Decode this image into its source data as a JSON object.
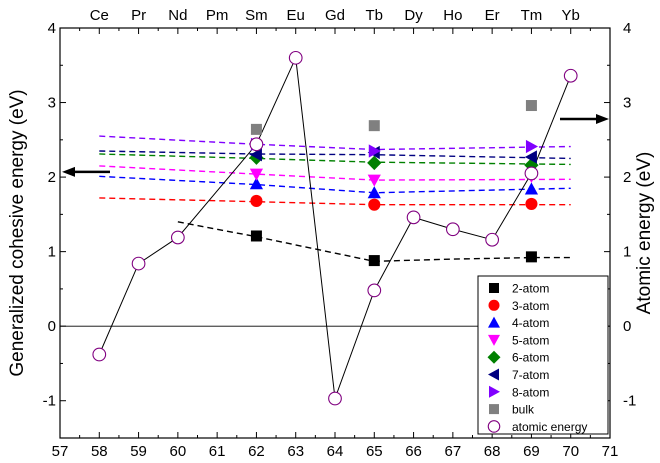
{
  "chart_data": {
    "type": "scatter",
    "xlabel": "",
    "ylabel_left": "Generalized cohesive energy (eV)",
    "ylabel_right": "Atomic energy (eV)",
    "xlim": [
      57,
      71
    ],
    "ylim": [
      -1.5,
      4
    ],
    "x_ticks": [
      57,
      58,
      59,
      60,
      61,
      62,
      63,
      64,
      65,
      66,
      67,
      68,
      69,
      70,
      71
    ],
    "y_ticks": [
      -1,
      0,
      1,
      2,
      3,
      4
    ],
    "top_labels": [
      {
        "x": 58,
        "label": "Ce"
      },
      {
        "x": 59,
        "label": "Pr"
      },
      {
        "x": 60,
        "label": "Nd"
      },
      {
        "x": 61,
        "label": "Pm"
      },
      {
        "x": 62,
        "label": "Sm"
      },
      {
        "x": 63,
        "label": "Eu"
      },
      {
        "x": 64,
        "label": "Gd"
      },
      {
        "x": 65,
        "label": "Tb"
      },
      {
        "x": 66,
        "label": "Dy"
      },
      {
        "x": 67,
        "label": "Ho"
      },
      {
        "x": 68,
        "label": "Er"
      },
      {
        "x": 69,
        "label": "Tm"
      },
      {
        "x": 70,
        "label": "Yb"
      }
    ],
    "series": [
      {
        "name": "2-atom",
        "marker": "square",
        "color": "#000000",
        "points": [
          [
            62,
            1.21
          ],
          [
            65,
            0.88
          ],
          [
            69,
            0.93
          ]
        ],
        "trend": [
          [
            60,
            1.4
          ],
          [
            62,
            1.2
          ],
          [
            65,
            0.87
          ],
          [
            67,
            0.9
          ],
          [
            69,
            0.92
          ],
          [
            70,
            0.92
          ]
        ]
      },
      {
        "name": "3-atom",
        "marker": "circle",
        "color": "#ff0000",
        "points": [
          [
            62,
            1.68
          ],
          [
            65,
            1.63
          ],
          [
            69,
            1.64
          ]
        ],
        "trend": [
          [
            58,
            1.72
          ],
          [
            62,
            1.67
          ],
          [
            65,
            1.63
          ],
          [
            70,
            1.63
          ]
        ]
      },
      {
        "name": "4-atom",
        "marker": "triangle-up",
        "color": "#0000ff",
        "points": [
          [
            62,
            1.91
          ],
          [
            65,
            1.79
          ],
          [
            69,
            1.84
          ]
        ],
        "trend": [
          [
            58,
            2.01
          ],
          [
            62,
            1.9
          ],
          [
            65,
            1.79
          ],
          [
            70,
            1.85
          ]
        ]
      },
      {
        "name": "5-atom",
        "marker": "triangle-down",
        "color": "#ff00ff",
        "points": [
          [
            62,
            2.04
          ],
          [
            65,
            1.96
          ],
          [
            69,
            2.01
          ]
        ],
        "trend": [
          [
            58,
            2.15
          ],
          [
            62,
            2.04
          ],
          [
            65,
            1.96
          ],
          [
            70,
            1.97
          ]
        ]
      },
      {
        "name": "6-atom",
        "marker": "diamond",
        "color": "#008000",
        "points": [
          [
            62,
            2.26
          ],
          [
            65,
            2.19
          ],
          [
            69,
            2.16
          ]
        ],
        "trend": [
          [
            58,
            2.31
          ],
          [
            62,
            2.25
          ],
          [
            65,
            2.2
          ],
          [
            70,
            2.17
          ]
        ]
      },
      {
        "name": "7-atom",
        "marker": "triangle-left",
        "color": "#000080",
        "points": [
          [
            62,
            2.3
          ],
          [
            65,
            2.33
          ],
          [
            69,
            2.27
          ]
        ],
        "trend": [
          [
            58,
            2.35
          ],
          [
            62,
            2.31
          ],
          [
            65,
            2.3
          ],
          [
            70,
            2.25
          ]
        ]
      },
      {
        "name": "8-atom",
        "marker": "triangle-right",
        "color": "#8000ff",
        "points": [
          [
            62,
            2.44
          ],
          [
            65,
            2.35
          ],
          [
            69,
            2.41
          ]
        ],
        "trend": [
          [
            58,
            2.55
          ],
          [
            62,
            2.44
          ],
          [
            65,
            2.37
          ],
          [
            70,
            2.41
          ]
        ]
      },
      {
        "name": "bulk",
        "marker": "square",
        "color": "#808080",
        "points": [
          [
            62,
            2.64
          ],
          [
            65,
            2.69
          ],
          [
            69,
            2.96
          ]
        ]
      },
      {
        "name": "atomic energy",
        "marker": "open-circle",
        "color": "#800080",
        "line_color": "#000000",
        "points": [
          [
            58,
            -0.38
          ],
          [
            59,
            0.84
          ],
          [
            60,
            1.19
          ],
          [
            62,
            2.44
          ],
          [
            63,
            3.6
          ],
          [
            64,
            -0.97
          ],
          [
            65,
            0.48
          ],
          [
            66,
            1.46
          ],
          [
            67,
            1.3
          ],
          [
            68,
            1.16
          ],
          [
            69,
            2.05
          ],
          [
            70,
            3.36
          ]
        ]
      }
    ],
    "legend_position": "bottom-right",
    "grid": false,
    "reference_line_y": 0,
    "annotations": [
      {
        "type": "arrow",
        "direction": "left",
        "points_to": "left axis"
      },
      {
        "type": "arrow",
        "direction": "right",
        "points_to": "right axis"
      }
    ]
  }
}
